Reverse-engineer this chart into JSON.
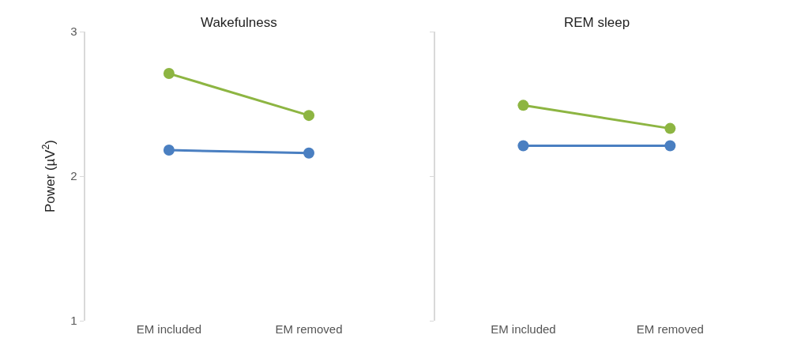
{
  "chart_data": [
    {
      "type": "line",
      "title": "Wakefulness",
      "ylabel": "Power (µV$^{2}$)",
      "categories": [
        "EM included",
        "EM removed"
      ],
      "ylim": [
        1,
        3
      ],
      "yticks": [
        1,
        2,
        3
      ],
      "grid": false,
      "marker": "circle",
      "line_style": "solid",
      "series": [
        {
          "color": "#8db542",
          "values": [
            2.71,
            2.42
          ]
        },
        {
          "color": "#4a7fc1",
          "values": [
            2.18,
            2.16
          ]
        }
      ]
    },
    {
      "type": "line",
      "title": "REM sleep",
      "categories": [
        "EM included",
        "EM removed"
      ],
      "ylim": [
        1,
        3
      ],
      "yticks": [
        1,
        2,
        3
      ],
      "tick_labels": "x",
      "grid": false,
      "marker": "circle",
      "line_style": "solid",
      "series": [
        {
          "color": "#8db542",
          "values": [
            2.49,
            2.33
          ]
        },
        {
          "color": "#4a7fc1",
          "values": [
            2.21,
            2.21
          ]
        }
      ]
    }
  ]
}
